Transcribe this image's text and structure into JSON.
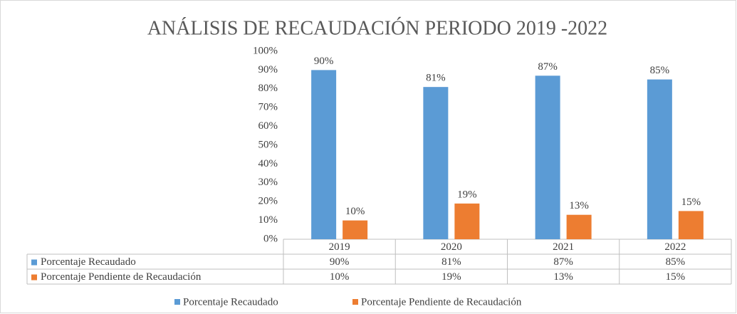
{
  "chart_data": {
    "type": "bar",
    "title": "ANÁLISIS DE RECAUDACIÓN PERIODO 2019 -2022",
    "categories": [
      "2019",
      "2020",
      "2021",
      "2022"
    ],
    "series": [
      {
        "name": "Porcentaje Recaudado",
        "color": "#5b9bd5",
        "values": [
          90,
          81,
          87,
          85
        ],
        "value_labels": [
          "90%",
          "81%",
          "87%",
          "85%"
        ]
      },
      {
        "name": "Porcentaje Pendiente de Recaudación",
        "color": "#ed7d31",
        "values": [
          10,
          19,
          13,
          15
        ],
        "value_labels": [
          "10%",
          "19%",
          "13%",
          "15%"
        ]
      }
    ],
    "ylim": [
      0,
      100
    ],
    "yticks": [
      {
        "value": 0,
        "label": "0%"
      },
      {
        "value": 10,
        "label": "10%"
      },
      {
        "value": 20,
        "label": "20%"
      },
      {
        "value": 30,
        "label": "30%"
      },
      {
        "value": 40,
        "label": "40%"
      },
      {
        "value": 50,
        "label": "50%"
      },
      {
        "value": 60,
        "label": "60%"
      },
      {
        "value": 70,
        "label": "70%"
      },
      {
        "value": 80,
        "label": "80%"
      },
      {
        "value": 90,
        "label": "90%"
      },
      {
        "value": 100,
        "label": "100%"
      }
    ],
    "grid": false,
    "legend": "bottom"
  }
}
